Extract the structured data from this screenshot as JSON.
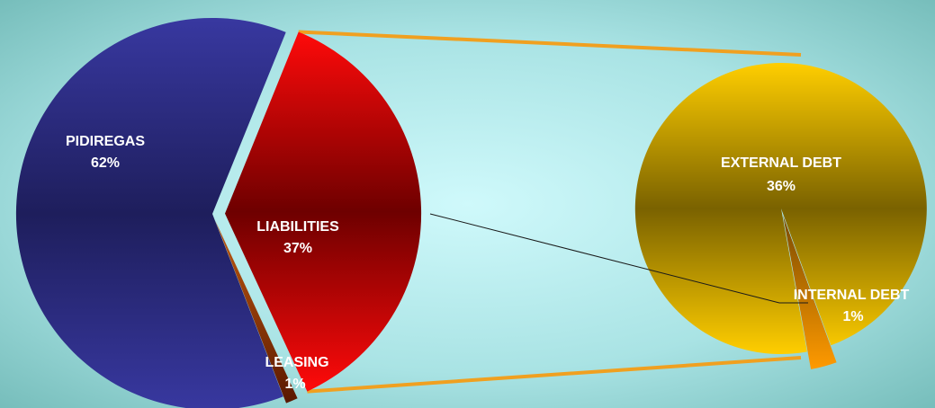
{
  "chart_data": {
    "type": "pie",
    "title": "",
    "main_pie": {
      "slices": [
        {
          "label": "PIDIREGAS",
          "value": 62,
          "value_label": "62%",
          "color": "#2a2a80"
        },
        {
          "label": "LIABILITIES",
          "value": 37,
          "value_label": "37%",
          "color": "#9e0000",
          "exploded": true
        },
        {
          "label": "LEASING",
          "value": 1,
          "value_label": "1%",
          "color": "#7a2a00"
        }
      ]
    },
    "breakdown_pie": {
      "of": "LIABILITIES",
      "slices": [
        {
          "label": "EXTERNAL DEBT",
          "value": 36,
          "value_label": "36%",
          "color": "#c9a200"
        },
        {
          "label": "INTERNAL DEBT",
          "value": 1,
          "value_label": "1%",
          "color": "#f08a00"
        }
      ]
    },
    "colors": {
      "background": "#7fc7c4",
      "label_text": "#ffffff",
      "connector": "#f0a020",
      "leader_line": "#1a1a1a"
    }
  }
}
